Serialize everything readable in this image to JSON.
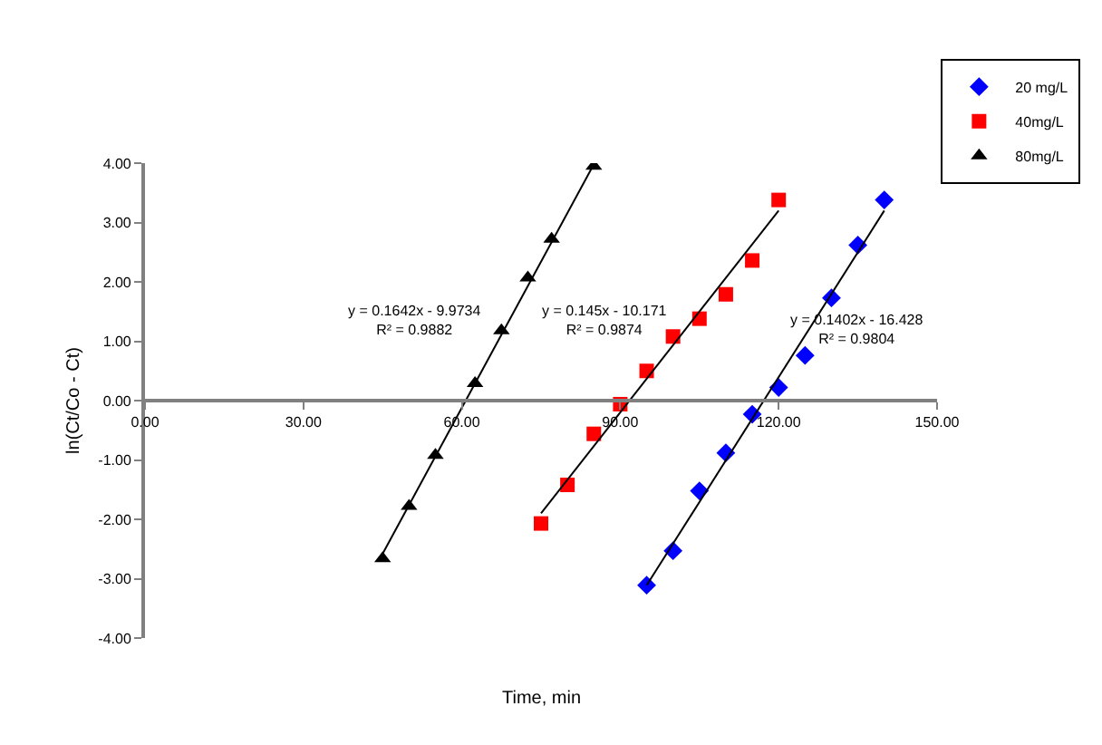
{
  "chart_data": {
    "type": "scatter",
    "xlabel": "Time, min",
    "ylabel": "ln(Ct/Co - Ct)",
    "xlim": [
      0,
      150
    ],
    "xticks": [
      {
        "value": 0,
        "label": "0.00"
      },
      {
        "value": 30,
        "label": "30.00"
      },
      {
        "value": 60,
        "label": "60.00"
      },
      {
        "value": 90,
        "label": "90.00"
      },
      {
        "value": 120,
        "label": "120.00"
      },
      {
        "value": 150,
        "label": "150.00"
      }
    ],
    "ylim": [
      -4,
      4
    ],
    "yticks": [
      {
        "value": -4,
        "label": "-4.00"
      },
      {
        "value": -3,
        "label": "-3.00"
      },
      {
        "value": -2,
        "label": "-2.00"
      },
      {
        "value": -1,
        "label": "-1.00"
      },
      {
        "value": 0,
        "label": "0.00"
      },
      {
        "value": 1,
        "label": "1.00"
      },
      {
        "value": 2,
        "label": "2.00"
      },
      {
        "value": 3,
        "label": "3.00"
      },
      {
        "value": 4,
        "label": "4.00"
      }
    ],
    "legend": "top right",
    "series": [
      {
        "name": "20 mg/L",
        "color": "#0000ff",
        "marker": "diamond",
        "x": [
          95,
          100,
          105,
          110,
          115,
          120,
          125,
          130,
          135,
          140
        ],
        "values": [
          -3.11,
          -2.53,
          -1.52,
          -0.88,
          -0.23,
          0.22,
          0.76,
          1.73,
          2.62,
          3.38
        ]
      },
      {
        "name": "40mg/L",
        "color": "#ff0000",
        "marker": "square",
        "x": [
          75,
          80,
          85,
          90,
          95,
          100,
          105,
          110,
          115,
          120
        ],
        "values": [
          -2.07,
          -1.42,
          -0.56,
          -0.06,
          0.5,
          1.08,
          1.38,
          1.79,
          2.36,
          3.38
        ]
      },
      {
        "name": "80mg/L",
        "color": "#000000",
        "marker": "triangle",
        "x": [
          45,
          50,
          55,
          62.5,
          67.5,
          72.5,
          77,
          85
        ],
        "values": [
          -2.66,
          -1.78,
          -0.92,
          0.29,
          1.18,
          2.07,
          2.72,
          3.95
        ]
      },
      {
        "type": "line",
        "color": "#000000",
        "marker": "none",
        "x": [
          95,
          140
        ],
        "values": [
          -3.11,
          3.2
        ]
      },
      {
        "type": "line",
        "color": "#000000",
        "marker": "none",
        "x": [
          75,
          120
        ],
        "values": [
          -1.9,
          3.2
        ]
      },
      {
        "type": "line",
        "color": "#000000",
        "marker": "none",
        "x": [
          45,
          85
        ],
        "values": [
          -2.58,
          3.98
        ]
      }
    ],
    "annotations": [
      "y = 0.1402x - 16.428\nR² = 0.9804",
      "y = 0.145x - 10.171\nR² = 0.9874",
      "y = 0.1642x - 9.9734\nR² = 0.9882"
    ]
  }
}
